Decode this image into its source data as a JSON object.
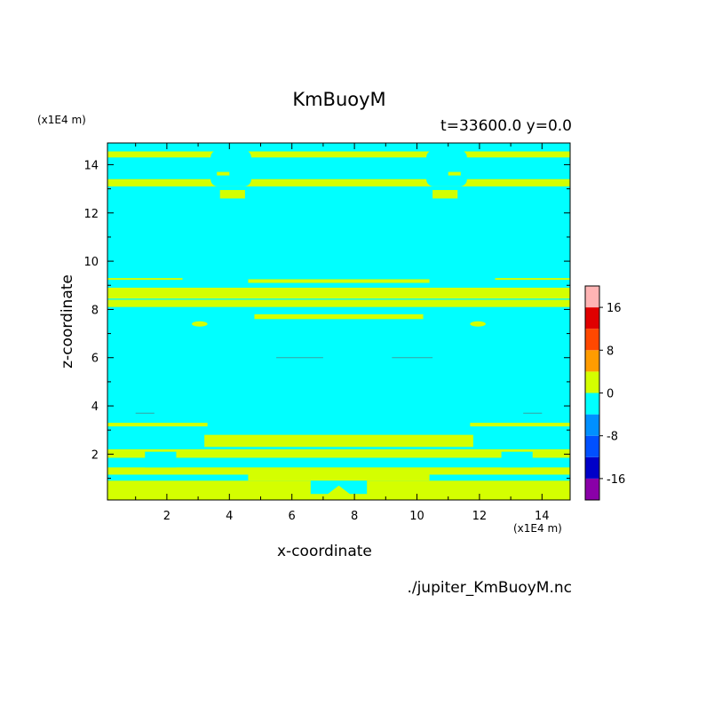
{
  "header": {
    "title": "KmBuoyM",
    "time_label": "t=33600.0 y=0.0"
  },
  "footer": {
    "file_label": "./jupiter_KmBuoyM.nc"
  },
  "colors": {
    "background": "#ffffff",
    "axis": "#000000",
    "levels": [
      "#8a00a8",
      "#0000c8",
      "#0050ff",
      "#0090ff",
      "#00ffff",
      "#d4ff00",
      "#ff9c00",
      "#ff4800",
      "#e00000",
      "#ffb4b4"
    ]
  },
  "chart_data": {
    "type": "heatmap",
    "title": "KmBuoyM",
    "subtitle": "t=33600.0 y=0.0",
    "xlabel": "x-coordinate",
    "ylabel": "z-coordinate",
    "x_unit": "(x1E4 m)",
    "y_unit": "(x1E4 m)",
    "xlim": [
      0.1,
      14.9
    ],
    "ylim": [
      0.1,
      14.9
    ],
    "x_ticks": [
      2,
      4,
      6,
      8,
      10,
      12,
      14
    ],
    "y_ticks": [
      2,
      4,
      6,
      8,
      10,
      12,
      14
    ],
    "background_level": "-4 to 0",
    "colorbar": {
      "levels": [
        -20,
        -16,
        -12,
        -8,
        -4,
        0,
        4,
        8,
        12,
        16,
        20
      ],
      "tick_labels": [
        "-16",
        "-8",
        "0",
        "8",
        "16"
      ],
      "tick_values": [
        -16,
        -8,
        0,
        8,
        16
      ]
    },
    "bands": [
      {
        "level": "0 to 4",
        "z0": 14.3,
        "z1": 14.55
      },
      {
        "level": "0 to 4",
        "z0": 13.1,
        "z1": 13.4
      },
      {
        "level": "0 to 4",
        "z0": 8.45,
        "z1": 8.9
      },
      {
        "level": "0 to 4",
        "z0": 8.1,
        "z1": 8.4
      },
      {
        "level": "0 to 4",
        "z0": 9.1,
        "z1": 9.25
      },
      {
        "level": "0 to 4",
        "z0": 7.6,
        "z1": 7.8
      },
      {
        "level": "0 to 4",
        "z0": 3.15,
        "z1": 3.3
      },
      {
        "level": "0 to 4",
        "z0": 2.3,
        "z1": 2.8
      },
      {
        "level": "0 to 4",
        "z0": 1.85,
        "z1": 2.2
      },
      {
        "level": "0 to 4",
        "z0": 1.15,
        "z1": 1.45
      },
      {
        "level": "0 to 4",
        "z0": 0.1,
        "z1": 0.9
      }
    ]
  }
}
